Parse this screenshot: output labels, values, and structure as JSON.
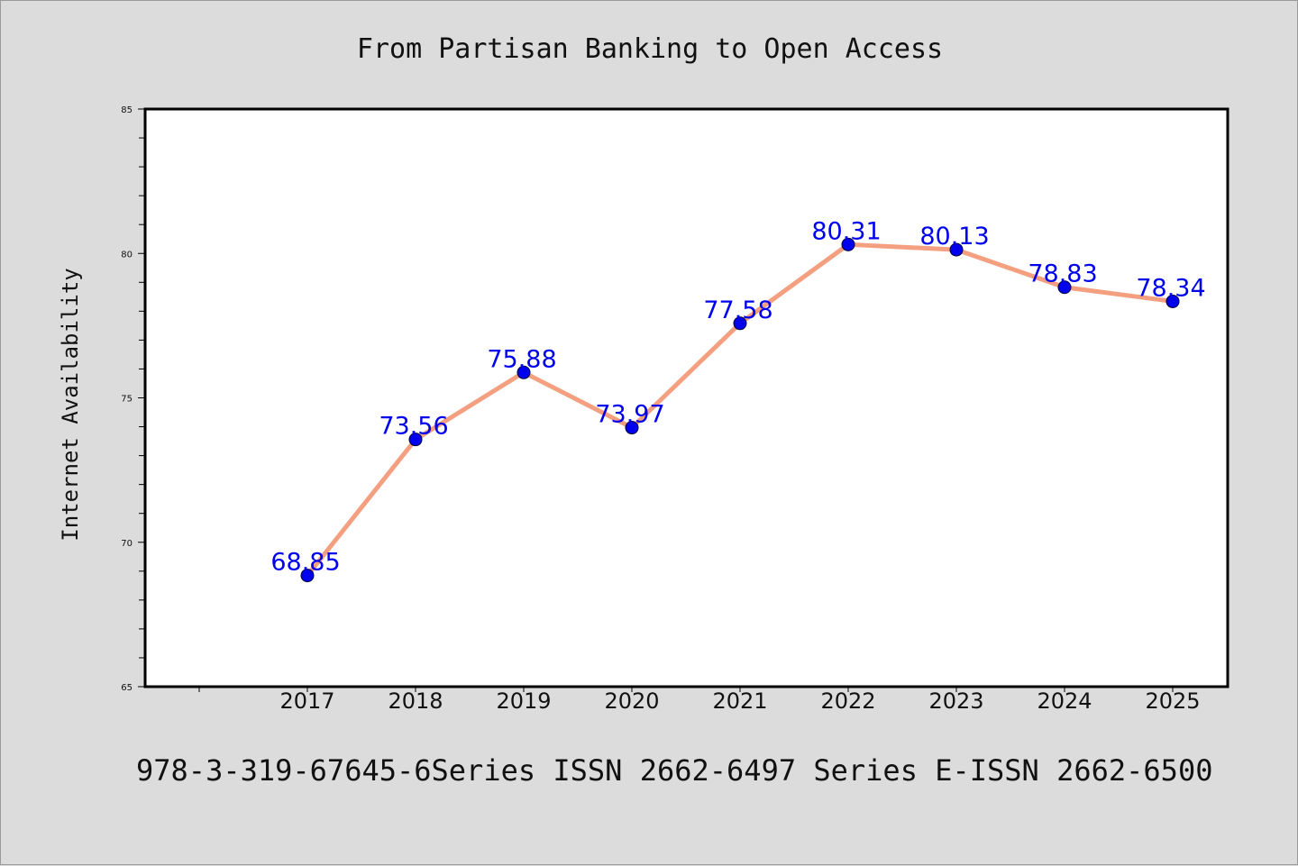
{
  "chart_data": {
    "type": "line",
    "title": "From Partisan Banking to Open Access",
    "xlabel": "",
    "ylabel": "Internet Availability",
    "categories": [
      "2017",
      "2018",
      "2019",
      "2020",
      "2021",
      "2022",
      "2023",
      "2024",
      "2025"
    ],
    "series": [
      {
        "values": [
          68.85,
          73.56,
          75.88,
          73.97,
          77.58,
          80.31,
          80.13,
          78.83,
          78.34
        ],
        "value_labels": [
          "68.85",
          "73.56",
          "75.88",
          "73.97",
          "77.58",
          "80.31",
          "80.13",
          "78.83",
          "78.34"
        ],
        "line_color": "#f4a080",
        "marker_color": "#0000ee",
        "label_color": "#0000ee"
      }
    ],
    "ylim": [
      65,
      85
    ],
    "yticks": [
      "65",
      "70",
      "75",
      "80",
      "85"
    ],
    "grid": false,
    "legend": "none"
  },
  "footer": "978-3-319-67645-6Series ISSN 2662-6497 Series E-ISSN 2662-6500",
  "colors": {
    "background": "#dcdcdc",
    "plot_background": "#ffffff",
    "axis": "#000000"
  }
}
